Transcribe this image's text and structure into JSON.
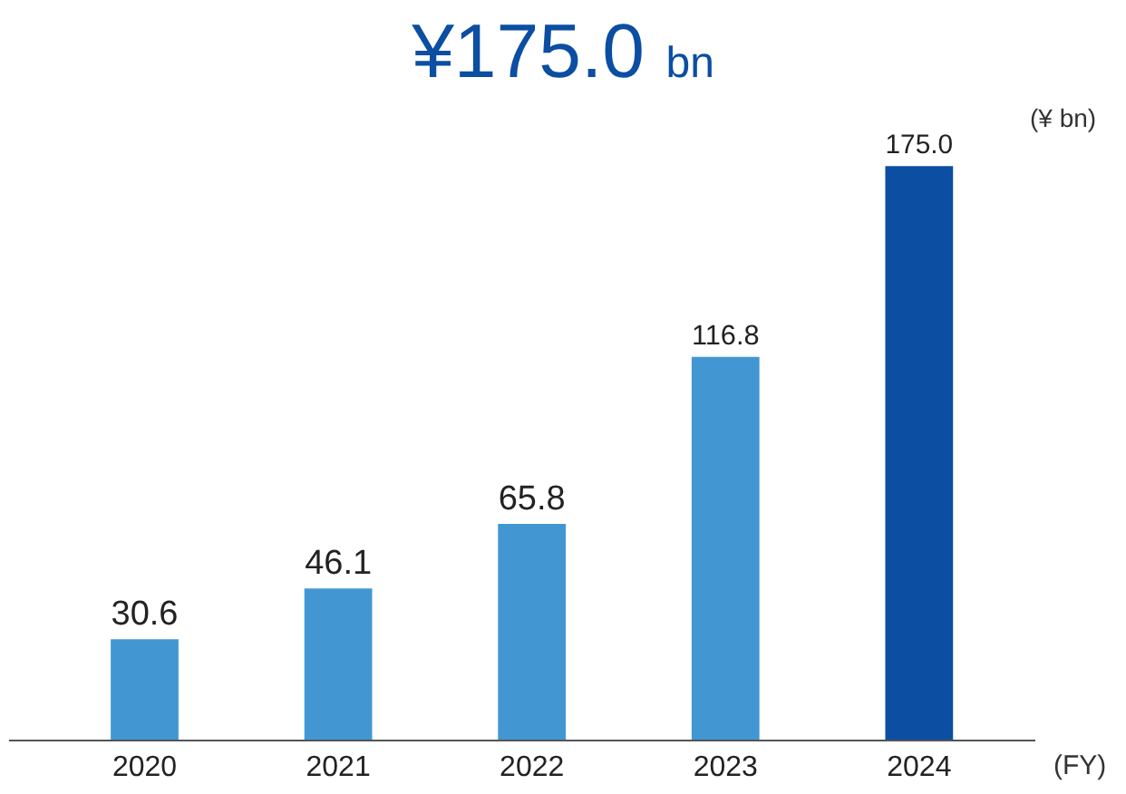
{
  "chart_data": {
    "type": "bar",
    "title": "¥175.0 bn",
    "categories": [
      "2020",
      "2021",
      "2022",
      "2023",
      "2024"
    ],
    "values": [
      30.6,
      46.1,
      65.8,
      116.8,
      175.0
    ],
    "colors": [
      "#4297d3",
      "#4297d3",
      "#4297d3",
      "#4297d3",
      "#0b4ea2"
    ],
    "xlabel": "(FY)",
    "ylabel": "(¥ bn)",
    "value_labels": [
      "30.6",
      "46.1",
      "65.8",
      "116.8",
      "175.0"
    ]
  }
}
